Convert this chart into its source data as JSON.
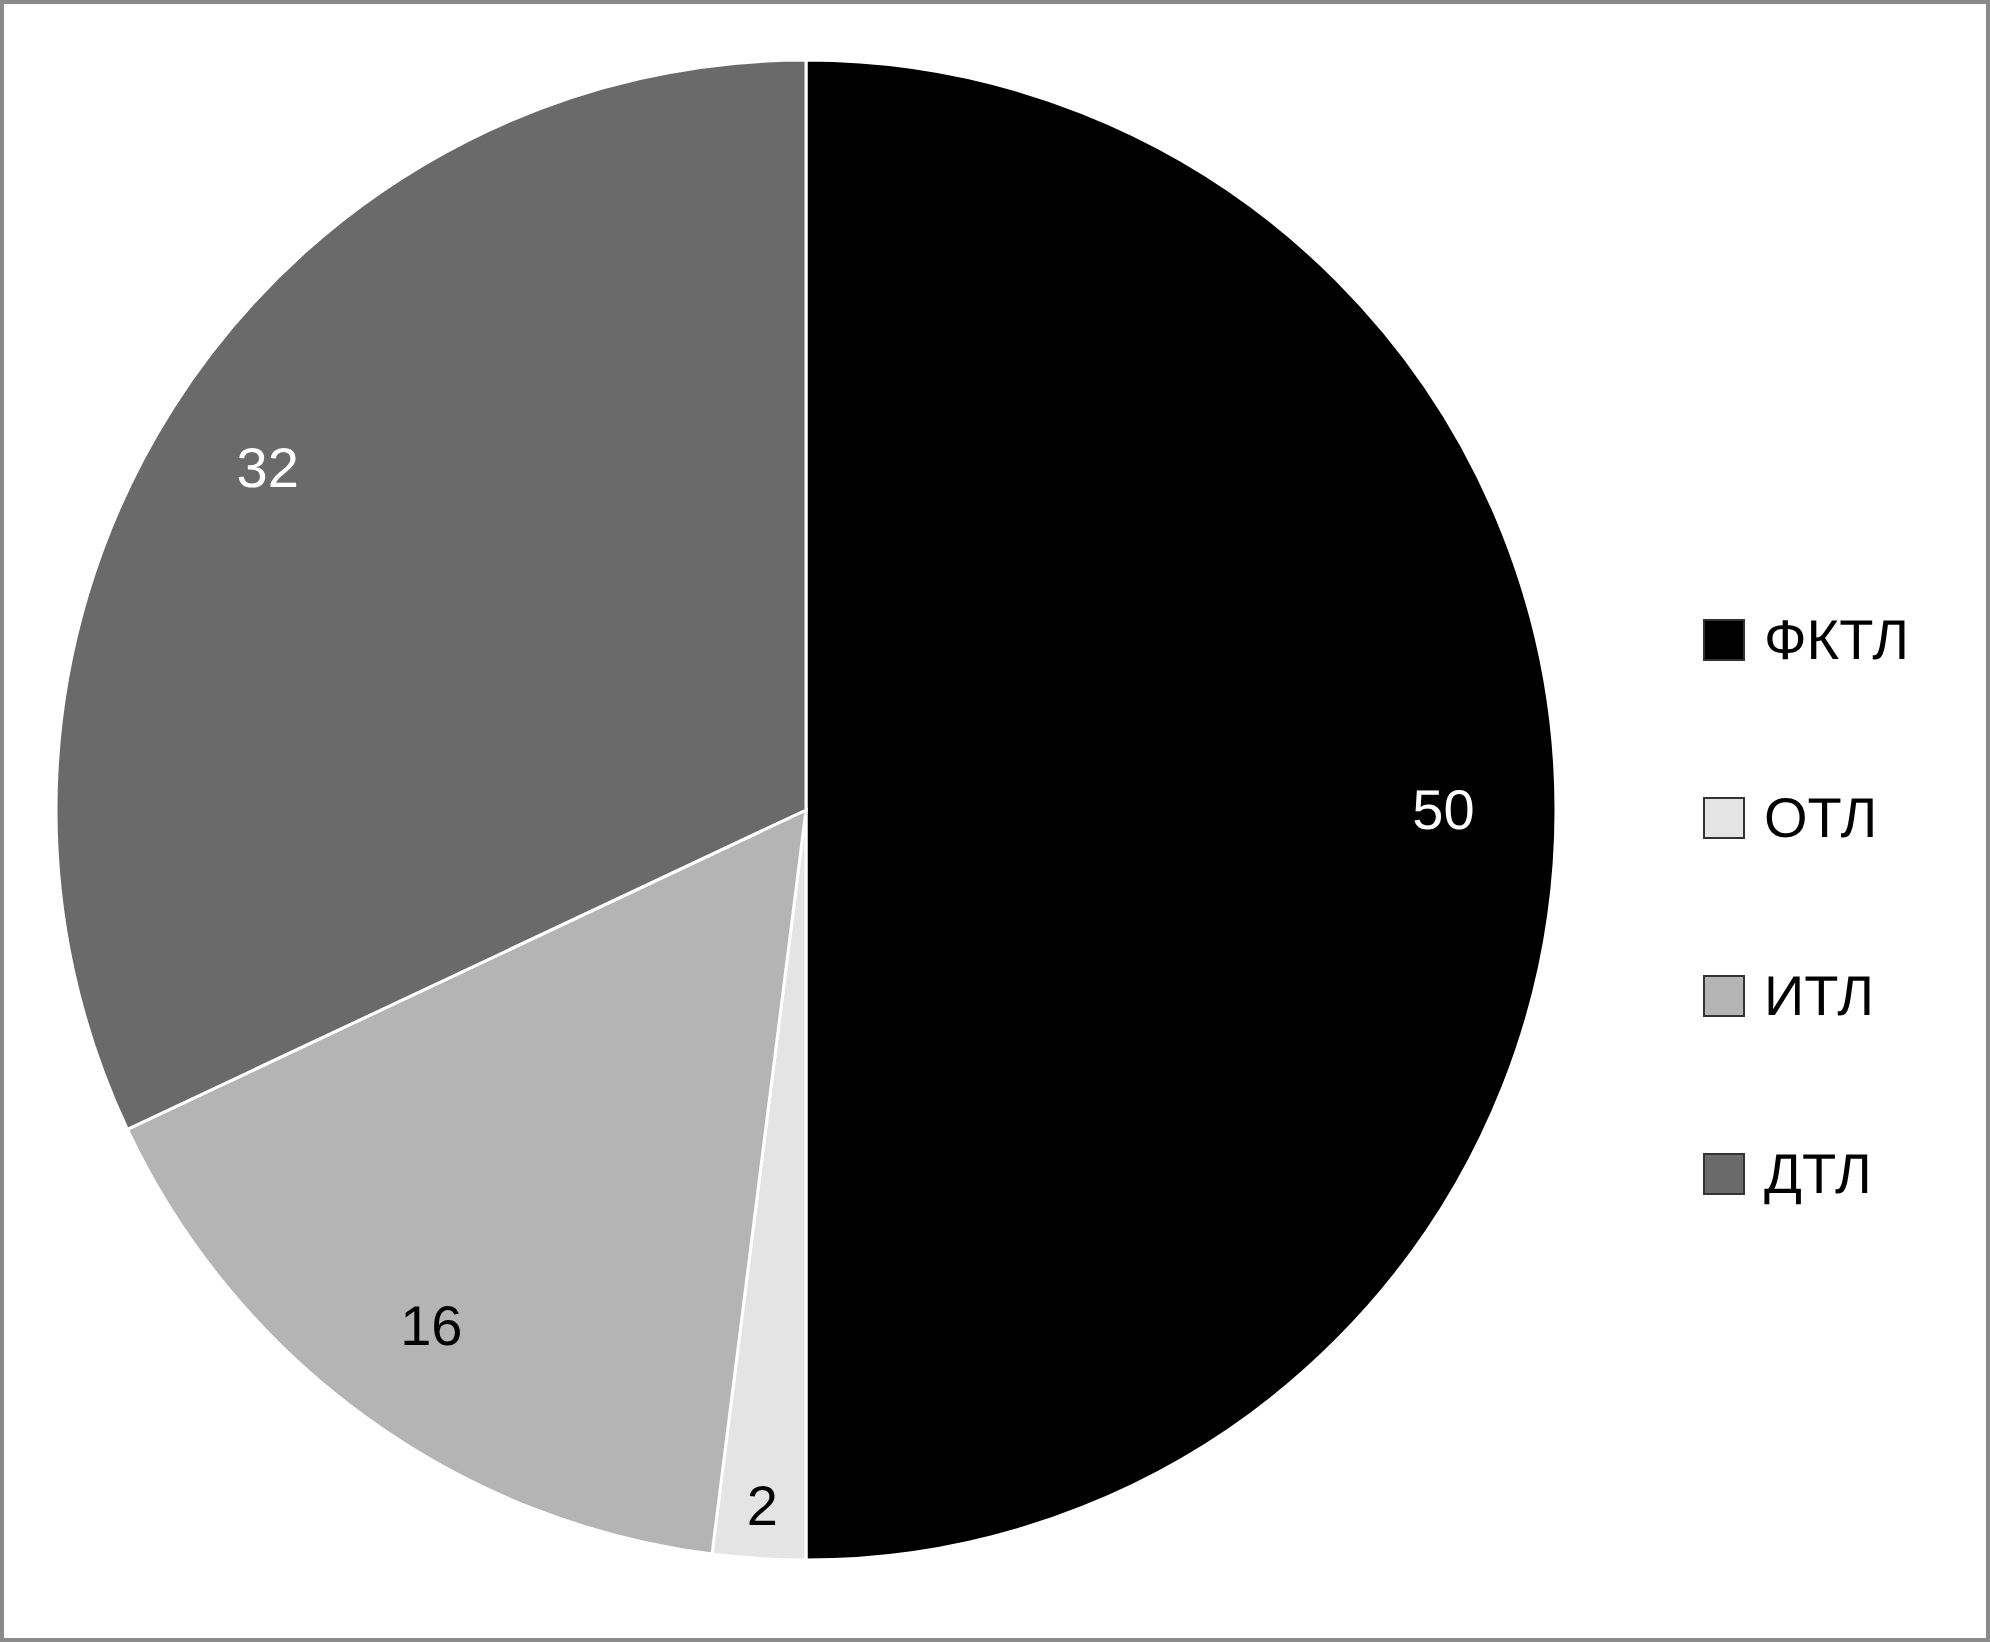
{
  "chart_data": {
    "type": "pie",
    "categories": [
      "ФКТЛ",
      "ОТЛ",
      "ИТЛ",
      "ДТЛ"
    ],
    "values": [
      50,
      2,
      16,
      32
    ],
    "colors": [
      "#000000",
      "#e4e4e4",
      "#b4b4b4",
      "#6a6a6a"
    ],
    "data_labels": true,
    "legend": "right"
  }
}
